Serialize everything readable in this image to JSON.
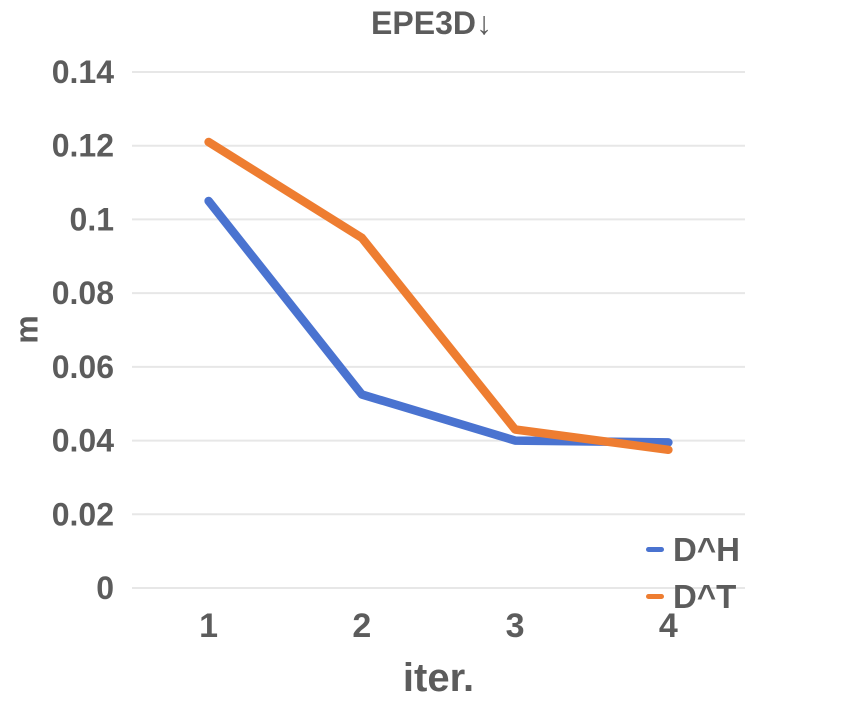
{
  "chart_data": {
    "type": "line",
    "title": "EPE3D↓",
    "xlabel": "iter.",
    "ylabel": "m",
    "categories": [
      "1",
      "2",
      "3",
      "4"
    ],
    "series": [
      {
        "name": "D^H",
        "color": "#4A73D0",
        "values": [
          0.105,
          0.0525,
          0.04,
          0.0395
        ]
      },
      {
        "name": "D^T",
        "color": "#EE7D31",
        "values": [
          0.121,
          0.095,
          0.043,
          0.0375
        ]
      }
    ],
    "ylim": [
      0,
      0.14
    ],
    "y_ticks": [
      0,
      0.02,
      0.04,
      0.06,
      0.08,
      0.1,
      0.12,
      0.14
    ],
    "y_tick_labels": [
      "0",
      "0.02",
      "0.04",
      "0.06",
      "0.08",
      "0.1",
      "0.12",
      "0.14"
    ],
    "grid": "horizontal-only",
    "legend_position": "bottom-right",
    "text_color": "#5c5c5c",
    "gridline_color": "#e7e7e7",
    "background_color": "#ffffff"
  }
}
